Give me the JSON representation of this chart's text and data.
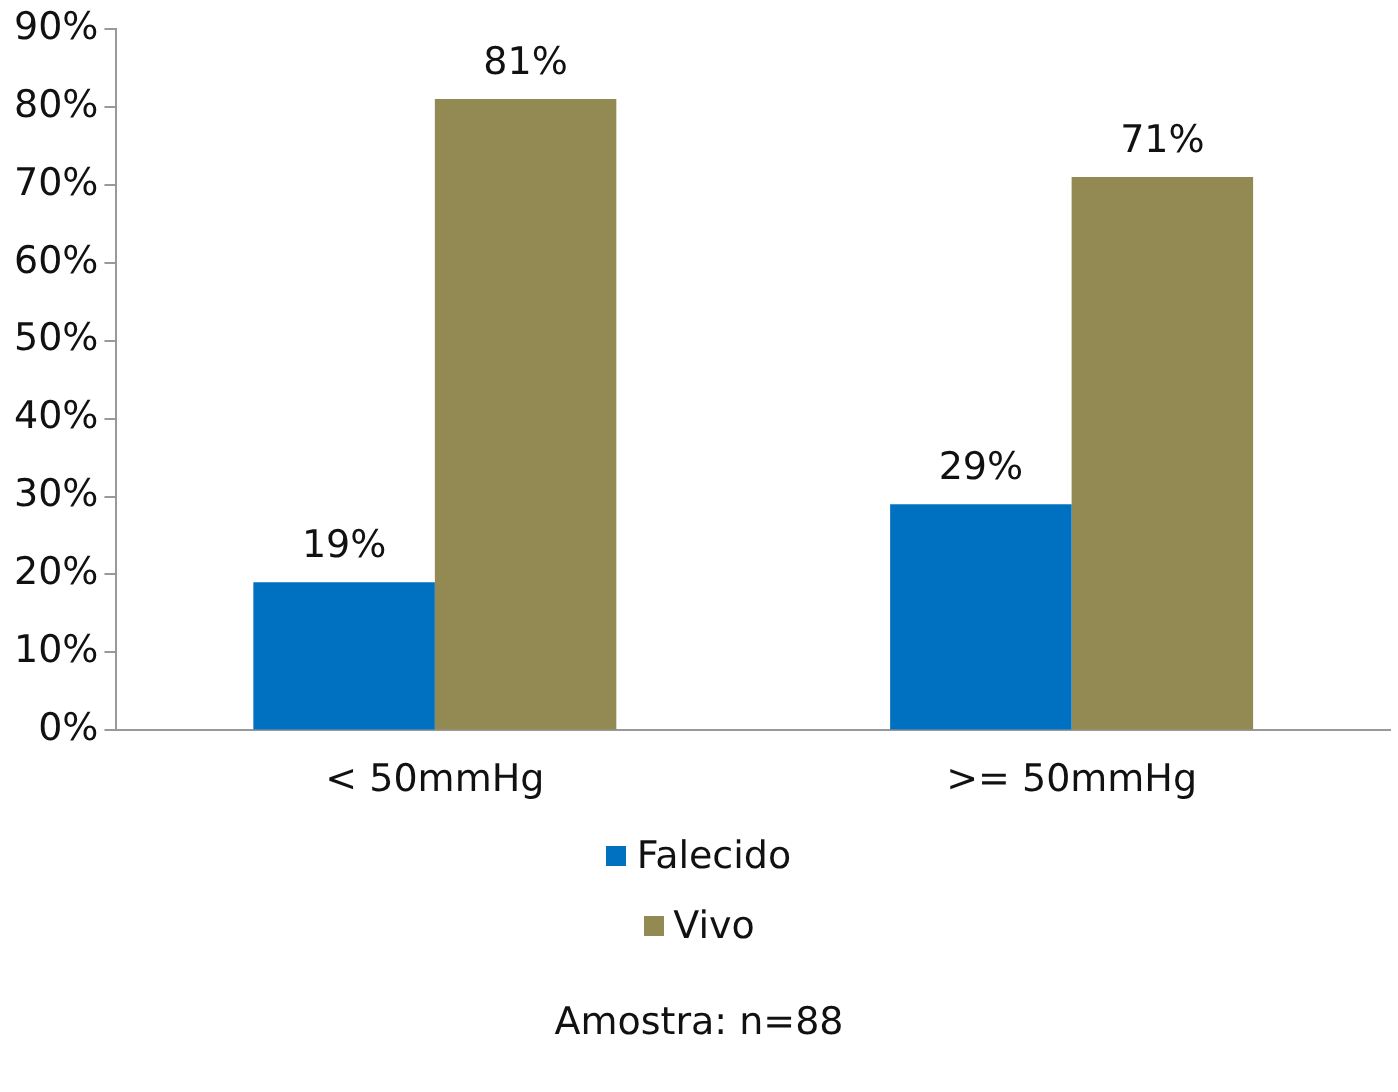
{
  "chart_data": {
    "type": "bar",
    "categories": [
      "< 50mmHg",
      ">= 50mmHg"
    ],
    "series": [
      {
        "name": "Falecido",
        "color": "#0070c0",
        "values": [
          19,
          29
        ],
        "value_labels": [
          "19%",
          "29%"
        ]
      },
      {
        "name": "Vivo",
        "color": "#938953",
        "values": [
          81,
          71
        ],
        "value_labels": [
          "81%",
          "71%"
        ]
      }
    ],
    "ylim": [
      0,
      90
    ],
    "yticks": [
      {
        "value": 0,
        "label": "0%"
      },
      {
        "value": 10,
        "label": "10%"
      },
      {
        "value": 20,
        "label": "20%"
      },
      {
        "value": 30,
        "label": "30%"
      },
      {
        "value": 40,
        "label": "40%"
      },
      {
        "value": 50,
        "label": "50%"
      },
      {
        "value": 60,
        "label": "60%"
      },
      {
        "value": 70,
        "label": "70%"
      },
      {
        "value": 80,
        "label": "80%"
      },
      {
        "value": 90,
        "label": "90%"
      }
    ],
    "grid": false,
    "legend": "bottom",
    "annotations": [
      "Amostra: n=88"
    ]
  }
}
